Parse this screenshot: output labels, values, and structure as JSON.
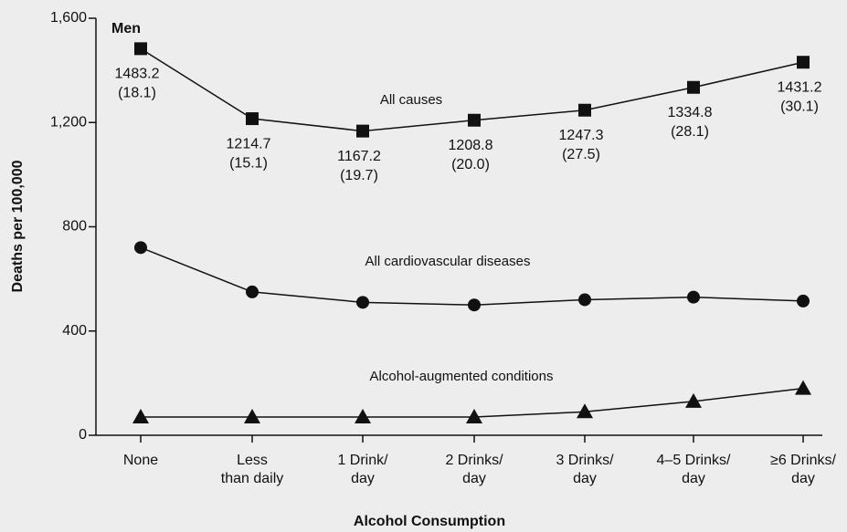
{
  "chart_data": {
    "type": "line",
    "title": "Men",
    "x_label": "Alcohol Consumption",
    "y_label": "Deaths per 100,000",
    "categories": [
      [
        "None"
      ],
      [
        "Less",
        "than daily"
      ],
      [
        "1 Drink/",
        "day"
      ],
      [
        "2 Drinks/",
        "day"
      ],
      [
        "3 Drinks/",
        "day"
      ],
      [
        "4–5 Drinks/",
        "day"
      ],
      [
        "≥6 Drinks/",
        "day"
      ]
    ],
    "ylim": [
      0,
      1600
    ],
    "yticks": [
      0,
      400,
      800,
      {
        "value": 1200,
        "label": "1,200"
      },
      {
        "value": 1600,
        "label": "1,600"
      }
    ],
    "series": [
      {
        "name": "All causes",
        "color": "#111111",
        "marker": "square",
        "values": [
          1483.2,
          1214.7,
          1167.2,
          1208.8,
          1247.3,
          1334.8,
          1431.2
        ],
        "value_labels": [
          [
            "1483.2",
            "(18.1)"
          ],
          [
            "1214.7",
            "(15.1)"
          ],
          [
            "1167.2",
            "(19.7)"
          ],
          [
            "1208.8",
            "(20.0)"
          ],
          [
            "1247.3",
            "(27.5)"
          ],
          [
            "1334.8",
            "(28.1)"
          ],
          [
            "1431.2",
            "(30.1)"
          ]
        ]
      },
      {
        "name": "All cardiovascular diseases",
        "color": "#111111",
        "marker": "circle",
        "values": [
          720,
          550,
          510,
          500,
          520,
          530,
          515
        ]
      },
      {
        "name": "Alcohol-augmented conditions",
        "color": "#111111",
        "marker": "triangle",
        "values": [
          70,
          70,
          70,
          70,
          90,
          130,
          180
        ]
      }
    ]
  }
}
